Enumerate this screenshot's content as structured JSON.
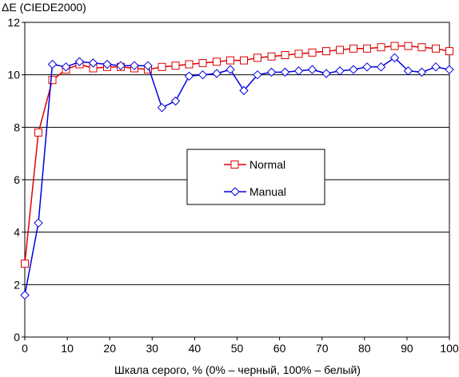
{
  "chart_data": {
    "type": "line",
    "ylabel": "ΔE (CIEDE2000)",
    "xlabel": "Шкала серого, % (0% – черный, 100% – белый)",
    "xlim": [
      0,
      100
    ],
    "ylim": [
      0,
      12
    ],
    "x_ticks": [
      0,
      10,
      20,
      30,
      40,
      50,
      60,
      70,
      80,
      90,
      100
    ],
    "y_ticks": [
      0,
      2,
      4,
      6,
      8,
      10,
      12
    ],
    "grid": "horizontal",
    "legend_position": "center",
    "series": [
      {
        "name": "Normal",
        "color": "#e00000",
        "marker": "square",
        "x": [
          0,
          3.2,
          6.5,
          9.7,
          12.9,
          16.1,
          19.4,
          22.6,
          25.8,
          29.0,
          32.3,
          35.5,
          38.7,
          41.9,
          45.2,
          48.4,
          51.6,
          54.8,
          58.1,
          61.3,
          64.5,
          67.7,
          71.0,
          74.2,
          77.4,
          80.6,
          83.9,
          87.1,
          90.3,
          93.5,
          96.8,
          100
        ],
        "y": [
          2.8,
          7.8,
          9.8,
          10.2,
          10.4,
          10.25,
          10.3,
          10.3,
          10.25,
          10.2,
          10.3,
          10.35,
          10.4,
          10.45,
          10.5,
          10.55,
          10.55,
          10.65,
          10.7,
          10.75,
          10.8,
          10.85,
          10.9,
          10.95,
          11.0,
          11.0,
          11.05,
          11.1,
          11.1,
          11.05,
          11.0,
          10.9
        ]
      },
      {
        "name": "Manual",
        "color": "#0000e0",
        "marker": "diamond",
        "x": [
          0,
          3.2,
          6.5,
          9.7,
          12.9,
          16.1,
          19.4,
          22.6,
          25.8,
          29.0,
          32.3,
          35.5,
          38.7,
          41.9,
          45.2,
          48.4,
          51.6,
          54.8,
          58.1,
          61.3,
          64.5,
          67.7,
          71.0,
          74.2,
          77.4,
          80.6,
          83.9,
          87.1,
          90.3,
          93.5,
          96.8,
          100
        ],
        "y": [
          1.6,
          4.35,
          10.4,
          10.3,
          10.5,
          10.45,
          10.4,
          10.35,
          10.35,
          10.35,
          8.75,
          9.0,
          9.95,
          10.0,
          10.05,
          10.2,
          9.4,
          10.0,
          10.1,
          10.1,
          10.15,
          10.2,
          10.05,
          10.15,
          10.2,
          10.3,
          10.3,
          10.65,
          10.15,
          10.1,
          10.3,
          10.2
        ]
      }
    ]
  }
}
